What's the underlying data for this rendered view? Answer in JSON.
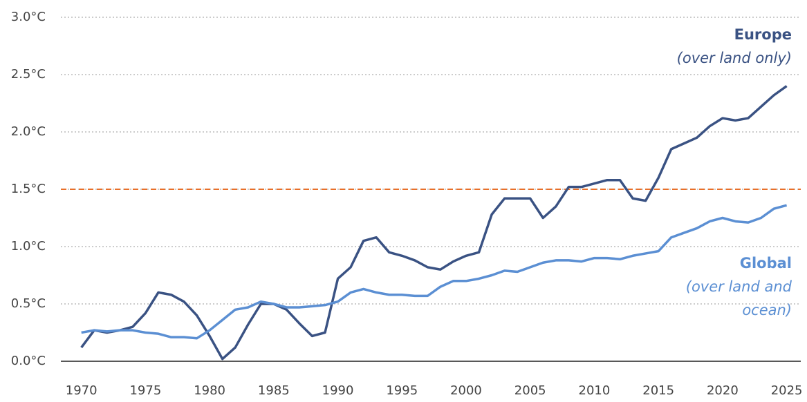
{
  "chart_data": {
    "type": "line",
    "x": [
      1970,
      1971,
      1972,
      1973,
      1974,
      1975,
      1976,
      1977,
      1978,
      1979,
      1980,
      1981,
      1982,
      1983,
      1984,
      1985,
      1986,
      1987,
      1988,
      1989,
      1990,
      1991,
      1992,
      1993,
      1994,
      1995,
      1996,
      1997,
      1998,
      1999,
      2000,
      2001,
      2002,
      2003,
      2004,
      2005,
      2006,
      2007,
      2008,
      2009,
      2010,
      2011,
      2012,
      2013,
      2014,
      2015,
      2016,
      2017,
      2018,
      2019,
      2020,
      2021,
      2022,
      2023,
      2024,
      2025
    ],
    "series": [
      {
        "name": "Europe",
        "color": "#3a5283",
        "values": [
          0.12,
          0.27,
          0.25,
          0.27,
          0.3,
          0.42,
          0.6,
          0.58,
          0.52,
          0.4,
          0.22,
          0.02,
          0.12,
          0.32,
          0.5,
          0.5,
          0.45,
          0.33,
          0.22,
          0.25,
          0.72,
          0.82,
          1.05,
          1.08,
          0.95,
          0.92,
          0.88,
          0.82,
          0.8,
          0.87,
          0.92,
          0.95,
          1.28,
          1.42,
          1.42,
          1.42,
          1.25,
          1.35,
          1.52,
          1.52,
          1.55,
          1.58,
          1.58,
          1.42,
          1.4,
          1.6,
          1.85,
          1.9,
          1.95,
          2.05,
          2.12,
          2.1,
          2.12,
          2.22,
          2.32,
          2.4
        ]
      },
      {
        "name": "Global",
        "color": "#5b8fd3",
        "values": [
          0.25,
          0.27,
          0.26,
          0.27,
          0.27,
          0.25,
          0.24,
          0.21,
          0.21,
          0.2,
          0.27,
          0.36,
          0.45,
          0.47,
          0.52,
          0.5,
          0.47,
          0.47,
          0.48,
          0.49,
          0.52,
          0.6,
          0.63,
          0.6,
          0.58,
          0.58,
          0.57,
          0.57,
          0.65,
          0.7,
          0.7,
          0.72,
          0.75,
          0.79,
          0.78,
          0.82,
          0.86,
          0.88,
          0.88,
          0.87,
          0.9,
          0.9,
          0.89,
          0.92,
          0.94,
          0.96,
          1.08,
          1.12,
          1.16,
          1.22,
          1.25,
          1.22,
          1.21,
          1.25,
          1.33,
          1.36
        ]
      }
    ],
    "annotations": [
      {
        "series": 0,
        "lines": [
          "Europe",
          "(over land only)"
        ]
      },
      {
        "series": 1,
        "lines": [
          "Global",
          "(over land and",
          "ocean)"
        ]
      }
    ],
    "reference_line": {
      "value": 1.5,
      "color": "#e8702a"
    },
    "xlim": [
      1968.4,
      2026.1
    ],
    "xticks": [
      1970,
      1975,
      1980,
      1985,
      1990,
      1995,
      2000,
      2005,
      2010,
      2015,
      2020,
      2025
    ],
    "ylim": [
      0,
      3
    ],
    "yticks": [
      {
        "value": 0,
        "label": "0.0°C"
      },
      {
        "value": 0.5,
        "label": "0.5°C"
      },
      {
        "value": 1,
        "label": "1.0°C"
      },
      {
        "value": 1.5,
        "label": "1.5°C"
      },
      {
        "value": 2,
        "label": "2.0°C"
      },
      {
        "value": 2.5,
        "label": "2.5°C"
      },
      {
        "value": 3,
        "label": "3.0°C"
      }
    ],
    "grid": true
  }
}
